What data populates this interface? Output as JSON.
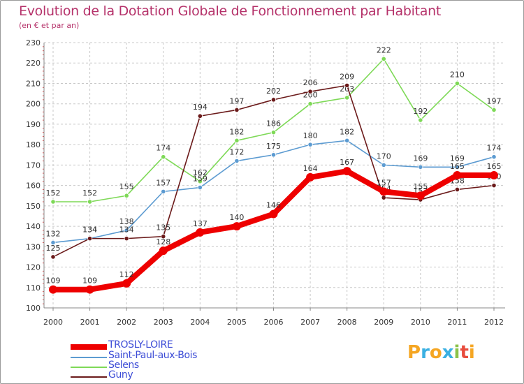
{
  "title": "Evolution de la Dotation Globale de Fonctionnement par Habitant",
  "subtitle": "(en € et par an)",
  "logo_text": "Proxiti",
  "colors": {
    "title": "#b5326a",
    "grid": "#c8c8c8",
    "axis": "#888888",
    "label": "#333333",
    "legend_text": "#3b4bd6"
  },
  "chart_data": {
    "type": "line",
    "title": "Evolution de la Dotation Globale de Fonctionnement par Habitant",
    "subtitle": "(en € et par an)",
    "xlabel": "",
    "ylabel": "",
    "ylim": [
      100,
      230
    ],
    "ytick_step": 10,
    "grid": true,
    "legend_position": "bottom-left",
    "categories": [
      "2000",
      "2001",
      "2002",
      "2003",
      "2004",
      "2005",
      "2006",
      "2007",
      "2008",
      "2009",
      "2010",
      "2011",
      "2012"
    ],
    "series": [
      {
        "name": "Selens",
        "color": "#7ed957",
        "values": [
          152,
          152,
          155,
          174,
          162,
          182,
          186,
          200,
          203,
          222,
          192,
          210,
          197
        ]
      },
      {
        "name": "Saint-Paul-aux-Bois",
        "color": "#5c9bd1",
        "values": [
          132,
          134,
          138,
          157,
          159,
          172,
          175,
          180,
          182,
          170,
          169,
          169,
          174
        ]
      },
      {
        "name": "Guny",
        "color": "#6b1a1a",
        "values": [
          125,
          134,
          134,
          135,
          194,
          197,
          202,
          206,
          209,
          154,
          153,
          158,
          160
        ]
      },
      {
        "name": "TROSLY-LOIRE",
        "color": "#ee0000",
        "values": [
          109,
          109,
          112,
          128,
          137,
          140,
          146,
          164,
          167,
          157,
          155,
          165,
          165
        ]
      }
    ]
  }
}
